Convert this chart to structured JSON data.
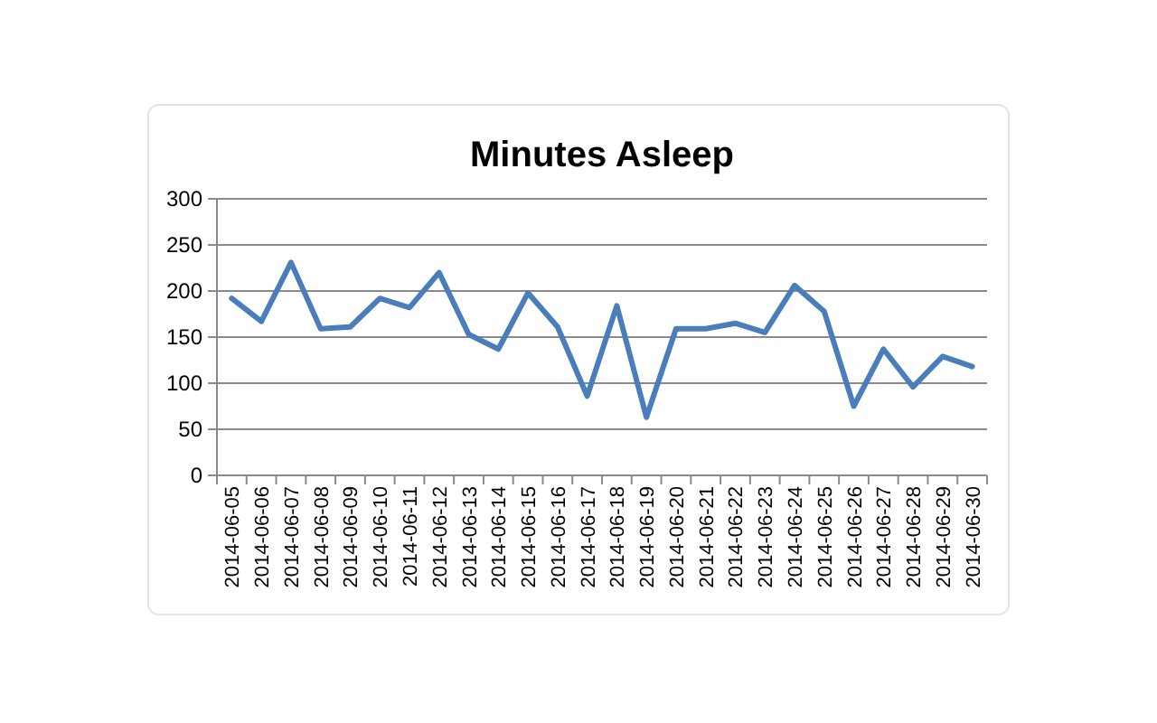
{
  "chart_data": {
    "type": "line",
    "title": "Minutes Asleep",
    "categories": [
      "2014-06-05",
      "2014-06-06",
      "2014-06-07",
      "2014-06-08",
      "2014-06-09",
      "2014-06-10",
      "2014-06-11",
      "2014-06-12",
      "2014-06-13",
      "2014-06-14",
      "2014-06-15",
      "2014-06-16",
      "2014-06-17",
      "2014-06-18",
      "2014-06-19",
      "2014-06-20",
      "2014-06-21",
      "2014-06-22",
      "2014-06-23",
      "2014-06-24",
      "2014-06-25",
      "2014-06-26",
      "2014-06-27",
      "2014-06-28",
      "2014-06-29",
      "2014-06-30"
    ],
    "series": [
      {
        "color": "#4a7ebb",
        "values": [
          192,
          167,
          231,
          159,
          161,
          192,
          182,
          220,
          153,
          137,
          198,
          161,
          86,
          184,
          63,
          159,
          159,
          165,
          155,
          206,
          178,
          75,
          137,
          96,
          129,
          118
        ]
      }
    ],
    "ylim": [
      0,
      300
    ],
    "yticks": [
      0,
      50,
      100,
      150,
      200,
      250,
      300
    ],
    "grid": "y",
    "marker": "none",
    "line_style": "solid"
  }
}
